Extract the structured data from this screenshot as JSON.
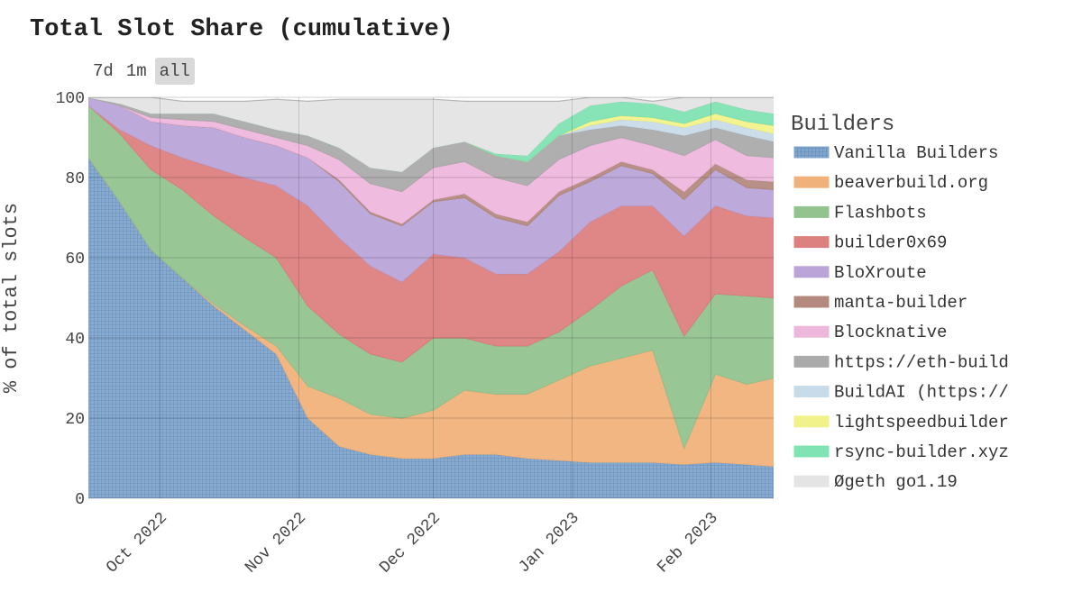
{
  "title": "Total Slot Share (cumulative)",
  "range_buttons": [
    {
      "label": "7d",
      "active": false
    },
    {
      "label": "1m",
      "active": false
    },
    {
      "label": "all",
      "active": true
    }
  ],
  "chart_data": {
    "type": "area",
    "stacked": true,
    "title": "Total Slot Share (cumulative)",
    "xlabel": "",
    "ylabel": "% of total slots",
    "ylim": [
      0,
      100
    ],
    "yticks": [
      0,
      20,
      40,
      60,
      80,
      100
    ],
    "xlim": [
      "2022-09-15",
      "2023-02-15"
    ],
    "xticks": [
      {
        "date": "2022-10-01",
        "label": "Oct 2022"
      },
      {
        "date": "2022-11-01",
        "label": "Nov 2022"
      },
      {
        "date": "2022-12-01",
        "label": "Dec 2022"
      },
      {
        "date": "2023-01-01",
        "label": "Jan 2023"
      },
      {
        "date": "2023-02-01",
        "label": "Feb 2023"
      }
    ],
    "grid": true,
    "legend_title": "Builders",
    "legend_position": "right",
    "x": [
      "2022-09-15",
      "2022-09-22",
      "2022-09-29",
      "2022-10-06",
      "2022-10-13",
      "2022-10-20",
      "2022-10-27",
      "2022-11-03",
      "2022-11-10",
      "2022-11-17",
      "2022-11-24",
      "2022-12-01",
      "2022-12-08",
      "2022-12-15",
      "2022-12-22",
      "2022-12-29",
      "2023-01-05",
      "2023-01-12",
      "2023-01-19",
      "2023-01-26",
      "2023-02-02",
      "2023-02-09",
      "2023-02-15"
    ],
    "series": [
      {
        "name": "Vanilla Builders",
        "color": "#7fa5cd",
        "pattern": "grid",
        "values": [
          85,
          74,
          62,
          55,
          48,
          42,
          36,
          20,
          13,
          11,
          10,
          10,
          11,
          11,
          10,
          9.5,
          9,
          9,
          9,
          8.5,
          9,
          8.5,
          8
        ]
      },
      {
        "name": "beaverbuild.org",
        "color": "#f0b27a",
        "values": [
          0,
          0,
          0,
          0,
          0.5,
          1,
          2,
          8,
          12,
          10,
          10,
          12,
          16,
          15,
          16,
          20,
          24,
          26,
          28,
          4,
          22,
          20,
          22
        ]
      },
      {
        "name": "Flashbots",
        "color": "#93c38f",
        "values": [
          13,
          17,
          20,
          22,
          22,
          22,
          22,
          20,
          16,
          15,
          14,
          18,
          13,
          12,
          12,
          12,
          14,
          18,
          20,
          28,
          20,
          22,
          20
        ]
      },
      {
        "name": "builder0x69",
        "color": "#dd8080",
        "values": [
          0,
          1,
          6,
          8,
          12,
          15,
          18,
          25,
          24,
          22,
          20,
          21,
          20,
          18,
          18,
          20,
          22,
          20,
          16,
          25,
          22,
          20,
          20
        ]
      },
      {
        "name": "BloXroute",
        "color": "#bba5d8",
        "values": [
          2,
          6,
          6,
          8,
          10,
          10,
          10,
          12,
          14,
          13,
          14,
          13,
          15,
          14,
          12,
          14,
          10,
          10,
          8,
          9,
          9,
          7,
          7
        ]
      },
      {
        "name": "manta-builder",
        "color": "#b48a7e",
        "values": [
          0,
          0,
          0,
          0,
          0,
          0,
          0,
          0,
          0.5,
          0.5,
          0.5,
          0.5,
          1,
          1,
          1,
          1,
          1,
          1,
          1,
          2,
          1.5,
          2,
          2
        ]
      },
      {
        "name": "Blocknative",
        "color": "#eeb7dc",
        "values": [
          0,
          0,
          1,
          1.5,
          1.5,
          2,
          2,
          3,
          5,
          7,
          8,
          8,
          8,
          9,
          9,
          8,
          8,
          6,
          6,
          9,
          6,
          6,
          6
        ]
      },
      {
        "name": "https://eth-build",
        "color": "#ababab",
        "values": [
          0,
          0.5,
          1,
          1.5,
          2,
          2,
          2,
          2.5,
          3,
          4,
          5,
          5,
          5,
          5.5,
          6,
          6,
          4,
          3,
          4,
          5,
          3,
          5,
          4
        ]
      },
      {
        "name": "BuildAI (https://",
        "color": "#c8dbe8",
        "values": [
          0,
          0,
          0,
          0,
          0,
          0,
          0,
          0,
          0,
          0,
          0,
          0,
          0,
          0,
          0,
          0,
          1,
          1.5,
          2,
          2,
          2,
          2,
          2
        ]
      },
      {
        "name": "lightspeedbuilder",
        "color": "#f2f28a",
        "values": [
          0,
          0,
          0,
          0,
          0,
          0,
          0,
          0,
          0,
          0,
          0,
          0,
          0,
          0,
          0,
          0,
          1,
          1,
          1,
          1,
          1.5,
          1.5,
          2
        ]
      },
      {
        "name": "rsync-builder.xyz",
        "color": "#80e3b3",
        "values": [
          0,
          0,
          0,
          0,
          0,
          0,
          0,
          0,
          0,
          0,
          0,
          0,
          0,
          0.5,
          1.5,
          3,
          4,
          3.5,
          3.5,
          3,
          3,
          3,
          3
        ]
      },
      {
        "name": "Øgeth go1.19",
        "color": "#e4e4e4",
        "values": [
          0,
          1.5,
          4,
          3,
          3,
          5,
          7.5,
          8.5,
          12,
          17,
          18,
          12,
          10,
          13,
          13.5,
          5.5,
          2,
          1,
          0.5,
          3.5,
          1,
          3,
          4
        ]
      }
    ]
  }
}
